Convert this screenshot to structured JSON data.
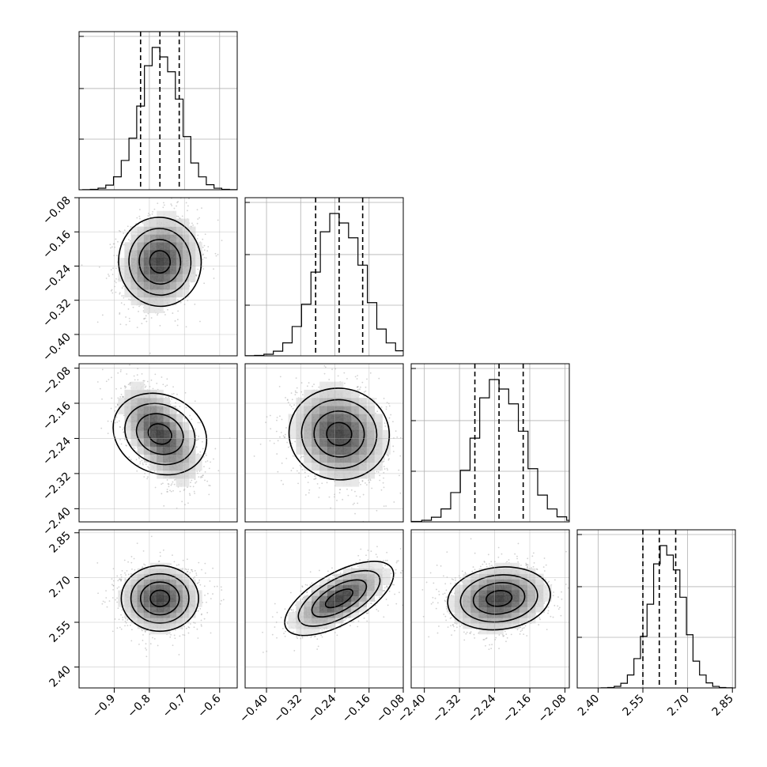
{
  "chart_data": {
    "type": "corner",
    "title": "",
    "parameters": [
      {
        "name": "",
        "mean": -0.77,
        "std": 0.055,
        "range": [
          -1.0,
          -0.55
        ],
        "ticks": [
          -0.9,
          -0.8,
          -0.7,
          -0.6
        ],
        "tick_labels": [
          "−0.9",
          "−0.8",
          "−0.7",
          "−0.6"
        ],
        "quantiles": [
          -0.825,
          -0.77,
          -0.715
        ]
      },
      {
        "name": "",
        "mean": -0.23,
        "std": 0.055,
        "range": [
          -0.45,
          -0.08
        ],
        "ticks": [
          -0.4,
          -0.32,
          -0.24,
          -0.16,
          -0.08
        ],
        "tick_labels": [
          "−0.40",
          "−0.32",
          "−0.24",
          "−0.16",
          "−0.08"
        ],
        "quantiles": [
          -0.285,
          -0.23,
          -0.175
        ]
      },
      {
        "name": "",
        "mean": -2.23,
        "std": 0.055,
        "range": [
          -2.43,
          -2.07
        ],
        "ticks": [
          -2.4,
          -2.32,
          -2.24,
          -2.16,
          -2.08
        ],
        "tick_labels": [
          "−2.40",
          "−2.32",
          "−2.24",
          "−2.16",
          "−2.08"
        ],
        "quantiles": [
          -2.285,
          -2.23,
          -2.175
        ]
      },
      {
        "name": "",
        "mean": 2.63,
        "std": 0.055,
        "range": [
          2.33,
          2.86
        ],
        "ticks": [
          2.4,
          2.55,
          2.7,
          2.85
        ],
        "tick_labels": [
          "2.40",
          "2.55",
          "2.70",
          "2.85"
        ],
        "quantiles": [
          2.55,
          2.605,
          2.66
        ]
      }
    ],
    "correlations": [
      {
        "i": 1,
        "j": 0,
        "rho": 0.15
      },
      {
        "i": 2,
        "j": 0,
        "rho": -0.55
      },
      {
        "i": 2,
        "j": 1,
        "rho": -0.15
      },
      {
        "i": 3,
        "j": 0,
        "rho": 0.0
      },
      {
        "i": 3,
        "j": 1,
        "rho": 0.65
      },
      {
        "i": 3,
        "j": 2,
        "rho": 0.15
      }
    ],
    "contour_levels_sigma": [
      0.5,
      1.0,
      1.5,
      2.0
    ],
    "histogram_bins": 20,
    "grid": true,
    "quantile_style": "dashed"
  }
}
